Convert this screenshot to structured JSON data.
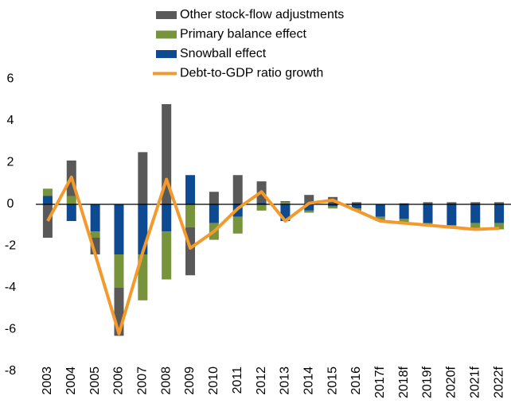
{
  "chart_data": {
    "type": "bar",
    "categories": [
      "2003",
      "2004",
      "2005",
      "2006",
      "2007",
      "2008",
      "2009",
      "2010",
      "2011",
      "2012",
      "2013",
      "2014",
      "2015",
      "2016",
      "2017f",
      "2018f",
      "2019f",
      "2020f",
      "2021f",
      "2022f"
    ],
    "series": [
      {
        "name": "Other stock-flow adjustments",
        "type": "bar",
        "color": "#595959",
        "values": [
          -1.6,
          1.7,
          -0.8,
          -2.3,
          2.5,
          4.8,
          -2.3,
          0.6,
          1.4,
          1.0,
          0.05,
          0.45,
          0.35,
          0.1,
          0,
          0.05,
          0.1,
          0.1,
          0.1,
          0.1
        ]
      },
      {
        "name": "Primary balance effect",
        "type": "bar",
        "color": "#77933c",
        "values": [
          0.35,
          0.4,
          -0.3,
          -1.6,
          -2.2,
          -2.3,
          -1.1,
          -0.8,
          -0.8,
          -0.3,
          0.1,
          -0.1,
          -0.1,
          -0.1,
          -0.2,
          -0.15,
          -0.05,
          -0.1,
          -0.3,
          -0.3
        ]
      },
      {
        "name": "Snowball effect",
        "type": "bar",
        "color": "#0d4a92",
        "values": [
          0.4,
          -0.8,
          -1.3,
          -2.4,
          -2.4,
          -1.3,
          1.4,
          -0.9,
          -0.6,
          0.1,
          -0.8,
          -0.3,
          -0.1,
          -0.2,
          -0.6,
          -0.7,
          -0.9,
          -1.0,
          -0.9,
          -0.9
        ]
      },
      {
        "name": "Debt-to-GDP ratio growth",
        "type": "line",
        "color": "#f39a2e",
        "values": [
          -0.8,
          1.3,
          -2.4,
          -6.2,
          -2.3,
          1.2,
          -2.1,
          -1.3,
          -0.2,
          0.6,
          -0.8,
          0.05,
          0.2,
          -0.3,
          -0.8,
          -0.9,
          -1.0,
          -1.1,
          -1.2,
          -1.15
        ]
      }
    ],
    "ylim": [
      -8,
      6
    ],
    "yticks": [
      -8,
      -6,
      -4,
      -2,
      0,
      2,
      4,
      6
    ],
    "grid": false,
    "legend": "top"
  }
}
